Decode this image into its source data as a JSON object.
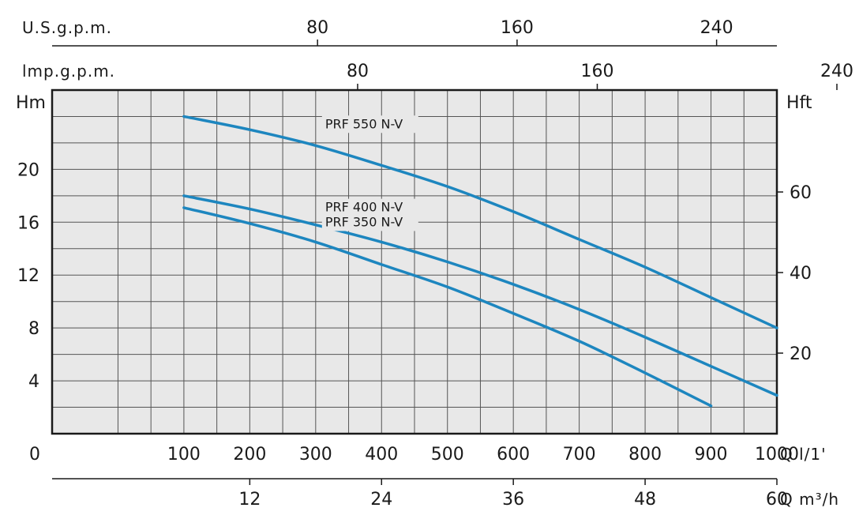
{
  "chart_data": {
    "type": "line",
    "x": [
      100,
      200,
      300,
      400,
      500,
      600,
      700,
      800,
      900,
      1000
    ],
    "xlim": [
      -100,
      1000
    ],
    "xlabel": "Q l/1'",
    "x_tick_labels": [
      "0",
      "100",
      "200",
      "300",
      "400",
      "500",
      "600",
      "700",
      "800",
      "900",
      "1000"
    ],
    "ylabel": "Hm",
    "ylim": [
      0,
      26
    ],
    "y_ticks": [
      4,
      8,
      12,
      16,
      20
    ],
    "y2label": "Hft",
    "y2_ticks": [
      20,
      40,
      60
    ],
    "top_axis_usgpm": {
      "label": "U.S.g.p.m.",
      "ticks": [
        80,
        160,
        240
      ]
    },
    "top_axis_impgpm": {
      "label": "lmp.g.p.m.",
      "ticks": [
        80,
        160,
        240
      ]
    },
    "bottom_axis_m3h": {
      "label": "Q m³/h",
      "ticks": [
        12,
        24,
        36,
        48,
        60
      ]
    },
    "grid": true,
    "series": [
      {
        "name": "PRF 550 N-V",
        "x": [
          100,
          200,
          300,
          400,
          500,
          600,
          700,
          800,
          900,
          1000
        ],
        "values": [
          24.0,
          23.0,
          21.8,
          20.3,
          18.7,
          16.8,
          14.7,
          12.6,
          10.3,
          8.0
        ]
      },
      {
        "name": "PRF 400 N-V",
        "x": [
          100,
          200,
          300,
          400,
          500,
          600,
          700,
          800,
          900,
          1000
        ],
        "values": [
          18.0,
          17.0,
          15.8,
          14.5,
          13.0,
          11.3,
          9.4,
          7.3,
          5.1,
          2.9
        ]
      },
      {
        "name": "PRF 350 N-V",
        "x": [
          100,
          200,
          300,
          400,
          500,
          600,
          700,
          800,
          900
        ],
        "values": [
          17.1,
          15.9,
          14.5,
          12.8,
          11.1,
          9.1,
          7.0,
          4.6,
          2.1
        ]
      }
    ]
  },
  "colors": {
    "line": "#1d86bf",
    "grid": "#555555",
    "plot_bg": "#e8e8e8",
    "text": "#1a1a1a"
  }
}
